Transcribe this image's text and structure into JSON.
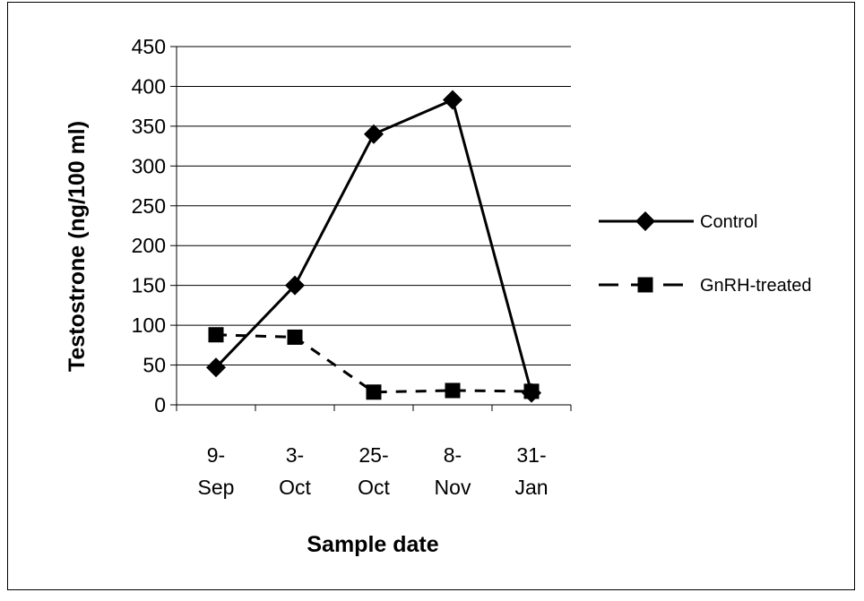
{
  "chart_data": {
    "type": "line",
    "title": "",
    "xlabel": "Sample date",
    "ylabel": "Testostrone (ng/100 ml)",
    "ylim": [
      0,
      450
    ],
    "yticks": [
      0,
      50,
      100,
      150,
      200,
      250,
      300,
      350,
      400,
      450
    ],
    "categories": [
      [
        "9-",
        "Sep"
      ],
      [
        "3-",
        "Oct"
      ],
      [
        "25-",
        "Oct"
      ],
      [
        "8-",
        "Nov"
      ],
      [
        "31-",
        "Jan"
      ]
    ],
    "grid": "horizontal",
    "legend": "right",
    "series": [
      {
        "name": "Control",
        "values": [
          47,
          150,
          340,
          383,
          15
        ],
        "marker": "diamond",
        "line": "solid",
        "color": "#000000"
      },
      {
        "name": "GnRH-treated",
        "values": [
          88,
          85,
          16,
          18,
          17
        ],
        "marker": "square",
        "line": "dashed",
        "color": "#000000"
      }
    ]
  }
}
